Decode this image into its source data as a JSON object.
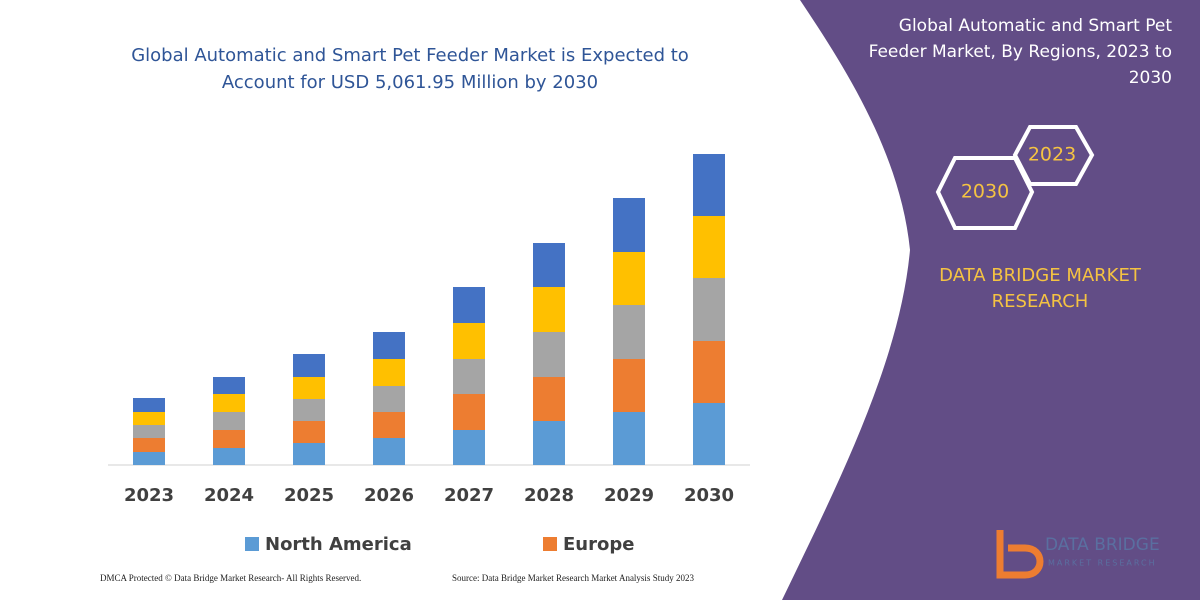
{
  "chart_data": {
    "type": "stacked-bar",
    "title": [
      "Global Automatic and Smart Pet Feeder Market is Expected to",
      "Account for USD 5,061.95 Million by 2030"
    ],
    "categories": [
      "2023",
      "2024",
      "2025",
      "2026",
      "2027",
      "2028",
      "2029",
      "2030"
    ],
    "series": [
      {
        "name": "North America",
        "color": "#5b9bd5",
        "values": [
          13,
          17,
          22,
          27,
          35,
          44,
          53,
          62
        ]
      },
      {
        "name": "Europe",
        "color": "#ed7d31",
        "values": [
          14,
          18,
          22,
          26,
          36,
          44,
          53,
          62
        ]
      },
      {
        "color": "#a5a5a5",
        "values": [
          13,
          18,
          22,
          26,
          35,
          45,
          54,
          63
        ]
      },
      {
        "color": "#ffc000",
        "values": [
          13,
          18,
          22,
          27,
          36,
          45,
          53,
          62
        ]
      },
      {
        "color": "#4472c4",
        "values": [
          14,
          17,
          23,
          27,
          36,
          44,
          54,
          62
        ]
      }
    ],
    "ylim": [
      0,
      320
    ]
  },
  "panel": {
    "title": [
      "Global Automatic and Smart Pet",
      "Feeder Market, By Regions, 2023 to",
      "2030"
    ],
    "hex_start": "2023",
    "hex_end": "2030",
    "brand": [
      "DATA BRIDGE MARKET",
      "RESEARCH"
    ],
    "logo": [
      "DATA BRIDGE",
      "MARKET RESEARCH"
    ]
  },
  "footer": {
    "left": "DMCA Protected © Data Bridge Market Research-  All Rights Reserved.",
    "right": "Source: Data Bridge Market Research  Market Analysis Study 2023"
  }
}
